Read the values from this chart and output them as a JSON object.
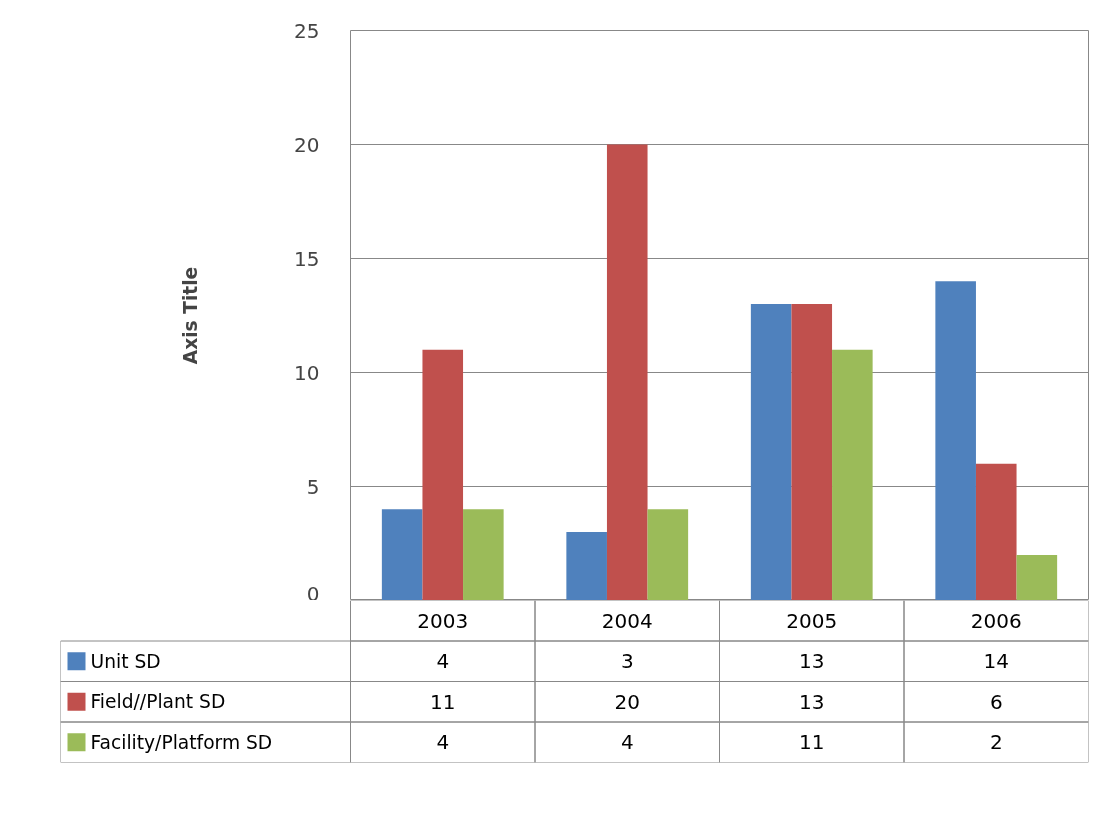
{
  "chart_data": {
    "type": "bar",
    "ylabel": "Axis Title",
    "categories": [
      "2003",
      "2004",
      "2005",
      "2006"
    ],
    "series": [
      {
        "name": "Unit SD",
        "color": "#4f81bd",
        "values": [
          4,
          3,
          13,
          14
        ]
      },
      {
        "name": "Field//Plant SD",
        "color": "#c0504d",
        "values": [
          11,
          20,
          13,
          6
        ]
      },
      {
        "name": "Facility/Platform SD",
        "color": "#9bbb59",
        "values": [
          4,
          4,
          11,
          2
        ]
      }
    ],
    "ylim": [
      0,
      25
    ],
    "yticks": [
      0,
      5,
      10,
      15,
      20,
      25
    ],
    "grid": "y",
    "legend": "bottom",
    "data_labels": true
  }
}
